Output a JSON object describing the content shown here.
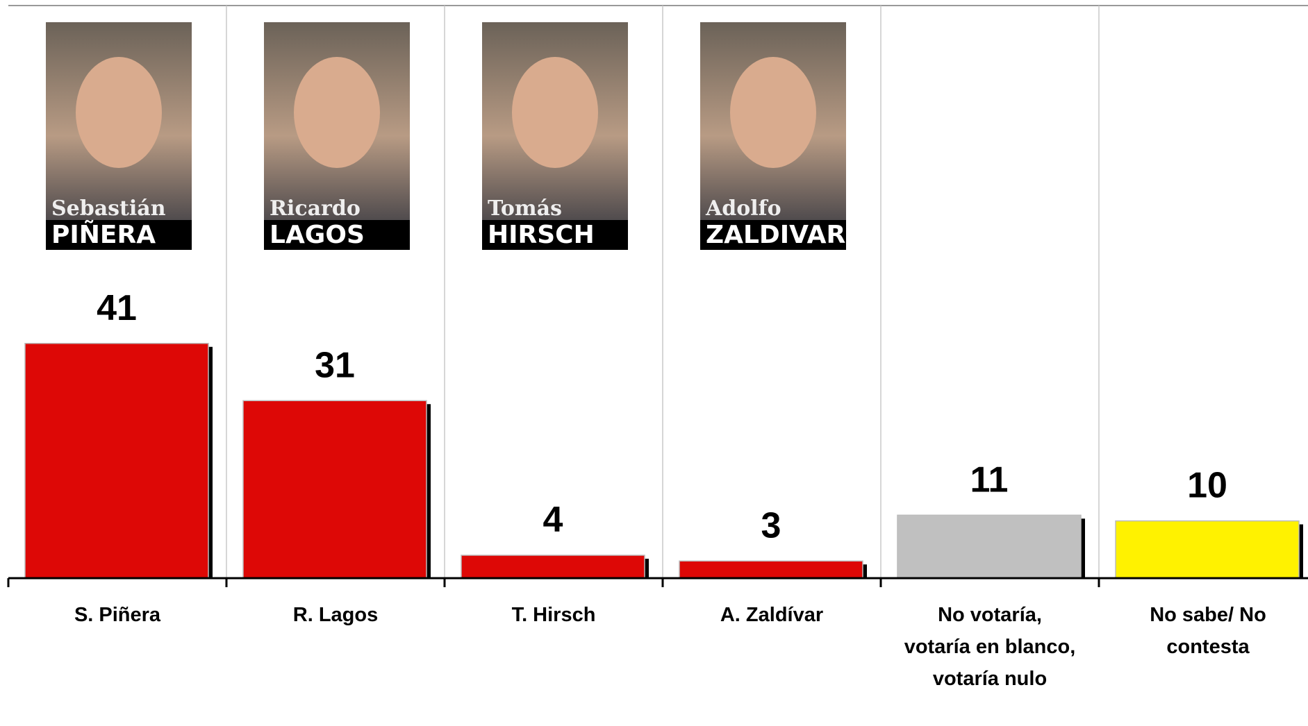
{
  "chart_data": {
    "type": "bar",
    "categories": [
      "S. Piñera",
      "R. Lagos",
      "T. Hirsch",
      "A. Zaldívar",
      "No votaría, votaría en blanco, votaría nulo",
      "No sabe/ No contesta"
    ],
    "values": [
      41,
      31,
      4,
      3,
      11,
      10
    ],
    "colors": [
      "#dd0806",
      "#dd0806",
      "#dd0806",
      "#dd0806",
      "#c0c0c0",
      "#fff200"
    ],
    "portraits": [
      {
        "first": "Sebastián",
        "last": "PIÑERA"
      },
      {
        "first": "Ricardo",
        "last": "LAGOS"
      },
      {
        "first": "Tomás",
        "last": "HIRSCH"
      },
      {
        "first": "Adolfo",
        "last": "ZALDIVAR"
      }
    ]
  }
}
